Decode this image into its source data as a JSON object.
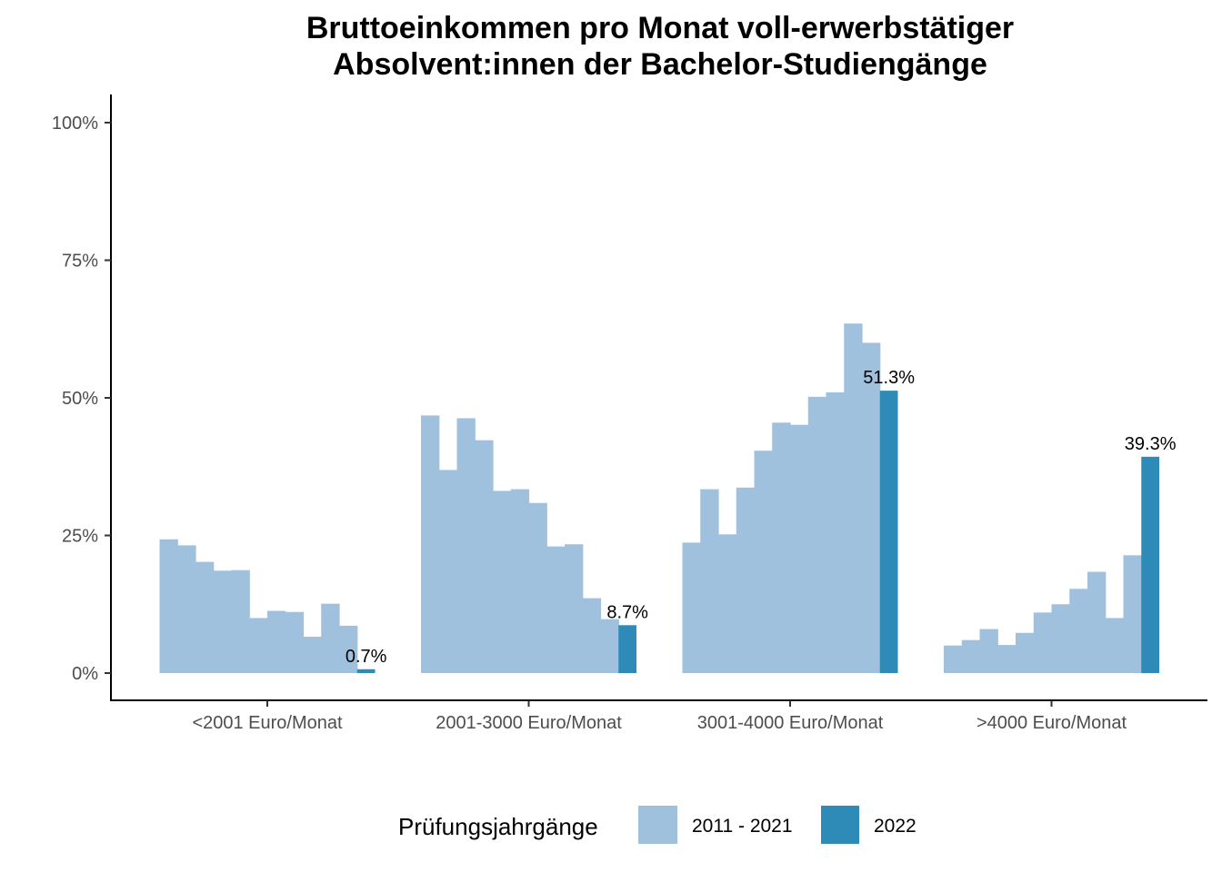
{
  "chart_data": {
    "type": "bar",
    "title_lines": [
      "Bruttoeinkommen pro Monat voll-erwerbstätiger",
      "Absolvent:innen der Bachelor-Studiengänge"
    ],
    "xlabel": "",
    "ylabel": "",
    "ylim": [
      0,
      1.05
    ],
    "y_ticks": [
      0,
      0.25,
      0.5,
      0.75,
      1.0
    ],
    "y_tick_labels": [
      "0%",
      "25%",
      "50%",
      "75%",
      "100%"
    ],
    "categories": [
      "<2001 Euro/Monat",
      "2001-3000 Euro/Monat",
      "3001-4000 Euro/Monat",
      ">4000 Euro/Monat"
    ],
    "series": [
      {
        "name": "2011 - 2021",
        "color": "#a0c1de",
        "values_per_category": [
          [
            0.243,
            0.232,
            0.202,
            0.186,
            0.187,
            0.1,
            0.113,
            0.111,
            0.066,
            0.126,
            0.086
          ],
          [
            0.468,
            0.369,
            0.463,
            0.423,
            0.331,
            0.334,
            0.309,
            0.23,
            0.234,
            0.136,
            0.098
          ],
          [
            0.237,
            0.334,
            0.252,
            0.337,
            0.404,
            0.455,
            0.451,
            0.502,
            0.51,
            0.635,
            0.6
          ],
          [
            0.05,
            0.06,
            0.08,
            0.051,
            0.073,
            0.11,
            0.125,
            0.153,
            0.184,
            0.1,
            0.214
          ]
        ]
      },
      {
        "name": "2022",
        "color": "#2e8bb8",
        "values": [
          0.007,
          0.087,
          0.513,
          0.393
        ],
        "labels": [
          "0.7%",
          "8.7%",
          "51.3%",
          "39.3%"
        ]
      }
    ],
    "legend": {
      "title": "Prüfungsjahrgänge",
      "position": "bottom",
      "entries": [
        "2011 - 2021",
        "2022"
      ]
    }
  }
}
